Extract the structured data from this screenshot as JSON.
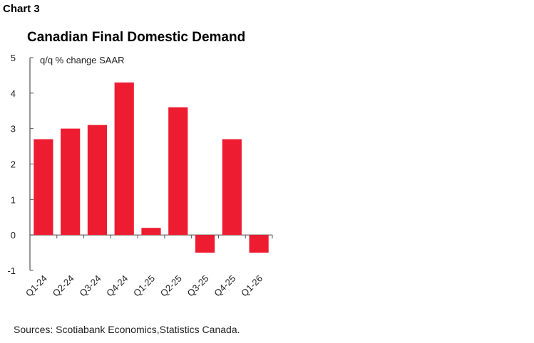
{
  "header": {
    "chart_label": "Chart 3"
  },
  "footer": {
    "source": "Sources: Scotiabank Economics,Statistics Canada."
  },
  "colors": {
    "bar": "#ee1c31",
    "axis": "#555555"
  },
  "chart_data": {
    "type": "bar",
    "title": "Canadian Final Domestic Demand",
    "ylabel": "q/q % change SAAR",
    "xlabel": "",
    "categories": [
      "Q1-24",
      "Q2-24",
      "Q3-24",
      "Q4-24",
      "Q1-25",
      "Q2-25",
      "Q3-25",
      "Q4-25",
      "Q1-26"
    ],
    "values": [
      2.7,
      3.0,
      3.1,
      4.3,
      0.2,
      3.6,
      -0.5,
      2.7,
      -0.5
    ],
    "ylim": [
      -1,
      5
    ],
    "yticks": [
      -1,
      0,
      1,
      2,
      3,
      4,
      5
    ],
    "grid": false,
    "legend": "none"
  }
}
